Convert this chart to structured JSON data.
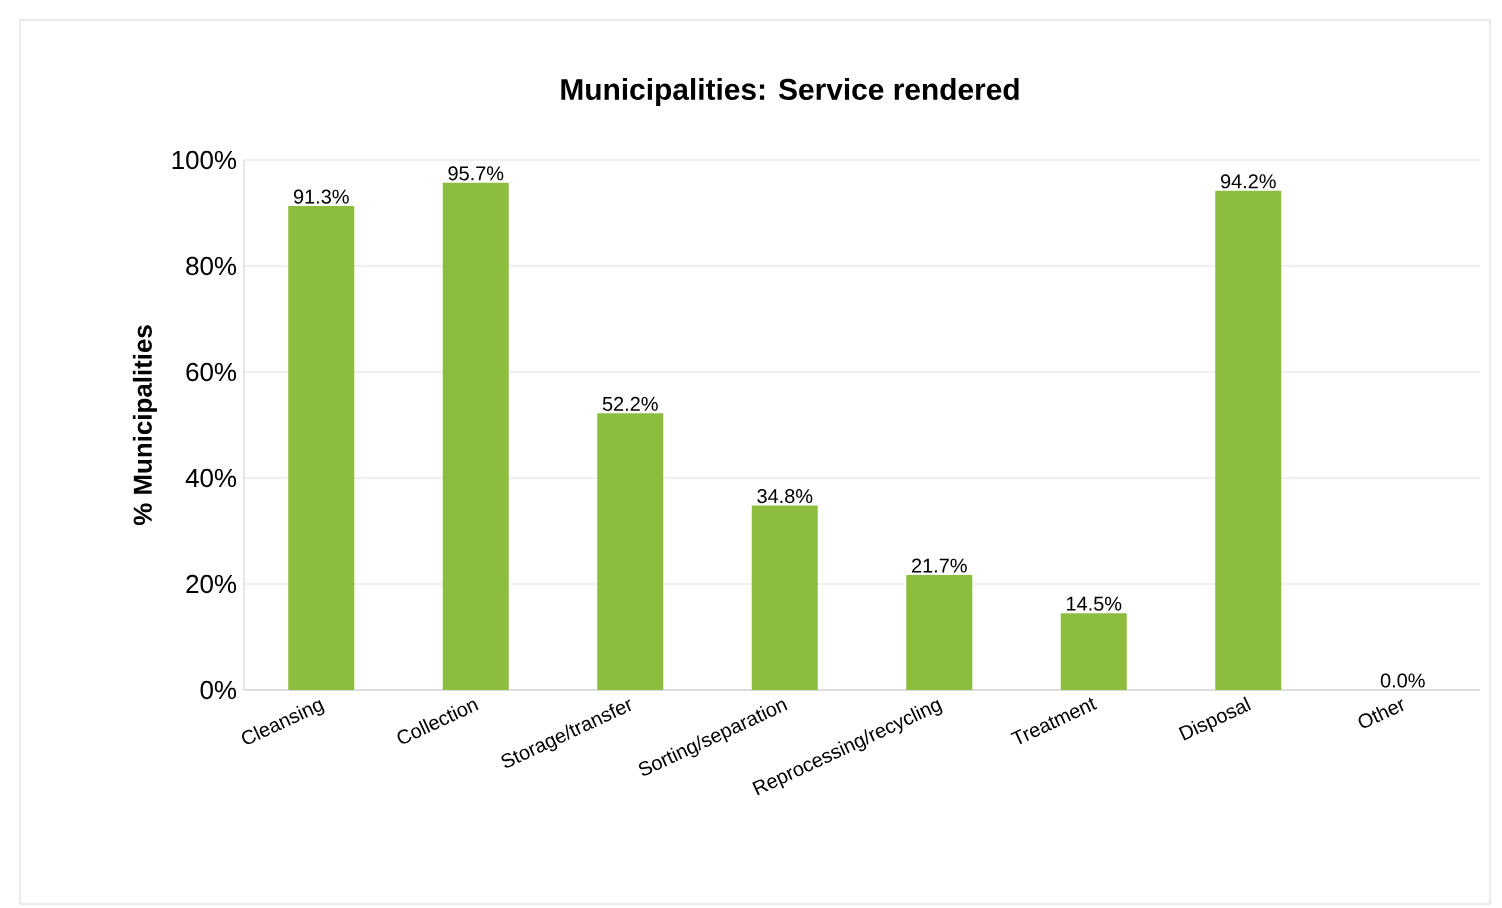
{
  "chart_data": {
    "type": "bar",
    "title": "Municipalities:  Service rendered",
    "ylabel": "% Municipalities",
    "categories": [
      "Cleansing",
      "Collection",
      "Storage/transfer",
      "Sorting/separation",
      "Reprocessing/recycling",
      "Treatment",
      "Disposal",
      "Other"
    ],
    "values": [
      91.3,
      95.7,
      52.2,
      34.8,
      21.7,
      14.5,
      94.2,
      0.0
    ],
    "value_labels": [
      "91.3%",
      "95.7%",
      "52.2%",
      "34.8%",
      "21.7%",
      "14.5%",
      "94.2%",
      "0.0%"
    ],
    "color": "#8dbd3e",
    "ylim": [
      0,
      100
    ],
    "yticks": [
      {
        "value": 0,
        "label": "0%"
      },
      {
        "value": 20,
        "label": "20%"
      },
      {
        "value": 40,
        "label": "40%"
      },
      {
        "value": 60,
        "label": "60%"
      },
      {
        "value": 80,
        "label": "80%"
      },
      {
        "value": 100,
        "label": "100%"
      }
    ],
    "grid": "y"
  }
}
